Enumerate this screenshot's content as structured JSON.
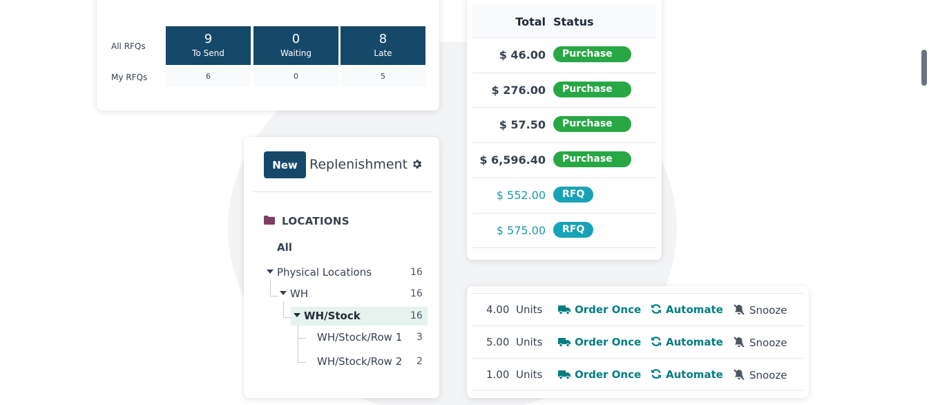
{
  "rfq": {
    "row_all_label": "All RFQs",
    "row_my_label": "My RFQs",
    "tiles": [
      {
        "value": "9",
        "caption": "To Send"
      },
      {
        "value": "0",
        "caption": "Waiting"
      },
      {
        "value": "8",
        "caption": "Late"
      }
    ],
    "my_values": [
      "6",
      "0",
      "5"
    ]
  },
  "replenishment": {
    "new_label": "New",
    "title": "Replenishment",
    "locations_heading": "LOCATIONS",
    "tree": {
      "all": "All",
      "physical": {
        "label": "Physical Locations",
        "count": "16"
      },
      "wh": {
        "label": "WH",
        "count": "16"
      },
      "wh_stock": {
        "label": "WH/Stock",
        "count": "16"
      },
      "row1": {
        "label": "WH/Stock/Row 1",
        "count": "3"
      },
      "row2": {
        "label": "WH/Stock/Row 2",
        "count": "2"
      }
    }
  },
  "orders": {
    "col_total": "Total",
    "col_status": "Status",
    "rows": [
      {
        "total": "$ 46.00",
        "status": "Purchase ..."
      },
      {
        "total": "$ 276.00",
        "status": "Purchase ..."
      },
      {
        "total": "$ 57.50",
        "status": "Purchase ..."
      },
      {
        "total": "$ 6,596.40",
        "status": "Purchase ..."
      },
      {
        "total": "$ 552.00",
        "status": "RFQ"
      },
      {
        "total": "$ 575.00",
        "status": "RFQ"
      }
    ]
  },
  "actions": {
    "order_once": "Order Once",
    "automate": "Automate",
    "snooze": "Snooze",
    "rows": [
      {
        "qty": "4.00",
        "uom": "Units"
      },
      {
        "qty": "5.00",
        "uom": "Units"
      },
      {
        "qty": "1.00",
        "uom": "Units"
      }
    ]
  },
  "colors": {
    "primary": "#16486a",
    "teal": "#017e84",
    "green": "#28a745",
    "rfq_badge": "#17a2b8"
  }
}
